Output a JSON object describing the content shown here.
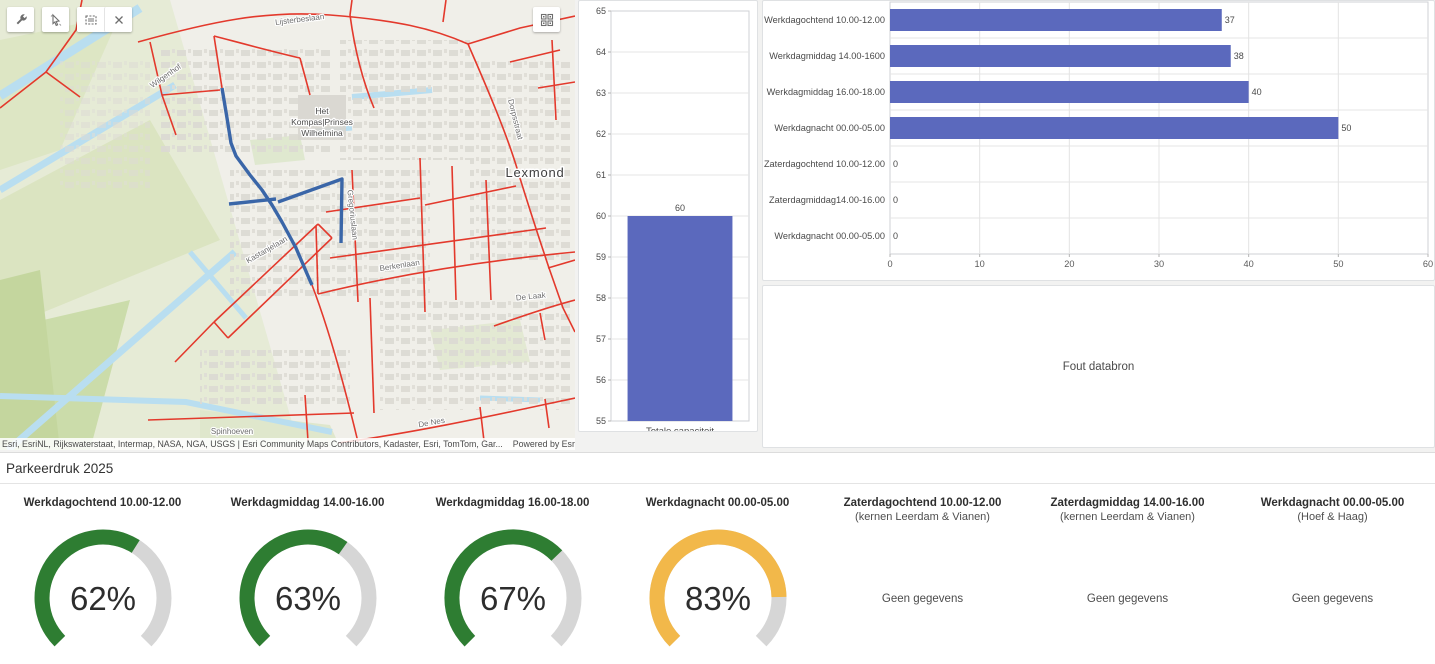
{
  "map": {
    "icons": {
      "sketch_tool": "wrench-icon",
      "select_tool": "pointer-icon",
      "extent_tool": "rectangle-icon",
      "clear_tool": "close-icon",
      "grid_toggle": "grid-icon"
    },
    "labels": {
      "facility_line1": "Het",
      "facility_line2": "Kompas|Prinses",
      "facility_line3": "Wilhelmina",
      "town": "Lexmond",
      "streets": {
        "lijsterbeslaan": "Lijsterbeslaan",
        "dorpsstraat": "Dorpsstraat",
        "wilgenhof": "Wilgenhof",
        "kastanjelaan": "Kastanjelaan",
        "gregoriuslaan": "Gregoriuslaan",
        "berkenlaan": "Berkenlaan",
        "de_laak": "De Laak",
        "spinhoeven": "Spinhoeven",
        "de_nes": "De Nes"
      }
    },
    "attribution": {
      "left": "Esri, EsriNL, Rijkswaterstaat, Intermap, NASA, NGA, USGS",
      "middle": "Esri Community Maps Contributors, Kadaster, Esri, TomTom, Gar...",
      "powered": "Powered by Esri"
    }
  },
  "error_panel": {
    "message": "Fout databron"
  },
  "section": {
    "title": "Parkeerdruk 2025"
  },
  "colors": {
    "bar": "#5b69bd",
    "gauge_green": "#2e7d32",
    "gauge_amber": "#f2b84a",
    "gauge_track": "#d6d6d6",
    "map_road": "#e3392c",
    "map_selection": "#3a66a8"
  },
  "chart_data": [
    {
      "id": "totale-capaciteit",
      "type": "bar",
      "orientation": "vertical",
      "categories": [
        "Totale capaciteit"
      ],
      "values": [
        60
      ],
      "ylim": [
        55,
        65
      ],
      "yticks": [
        55,
        56,
        57,
        58,
        59,
        60,
        61,
        62,
        63,
        64,
        65
      ],
      "value_labels": true,
      "grid": true,
      "legend": "none"
    },
    {
      "id": "bezetting-per-dagdeel",
      "type": "bar",
      "orientation": "horizontal",
      "categories": [
        "Werkdagochtend 10.00-12.00",
        "Werkdagmiddag 14.00-1600",
        "Werkdagmiddag 16.00-18.00",
        "Werkdagnacht 00.00-05.00",
        "Zaterdagochtend 10.00-12.00",
        "Zaterdagmiddag14.00-16.00",
        "Werkdagnacht 00.00-05.00"
      ],
      "values": [
        37,
        38,
        40,
        50,
        0,
        0,
        0
      ],
      "xlim": [
        0,
        60
      ],
      "xticks": [
        0,
        10,
        20,
        30,
        40,
        50,
        60
      ],
      "value_labels": true,
      "grid": true,
      "legend": "none"
    },
    {
      "id": "parkeerdruk-gauges",
      "type": "gauge",
      "items": [
        {
          "title": "Werkdagochtend 10.00-12.00",
          "subtitle": "",
          "percent": 62,
          "display": "62%",
          "color": "#2e7d32"
        },
        {
          "title": "Werkdagmiddag 14.00-16.00",
          "subtitle": "",
          "percent": 63,
          "display": "63%",
          "color": "#2e7d32"
        },
        {
          "title": "Werkdagmiddag 16.00-18.00",
          "subtitle": "",
          "percent": 67,
          "display": "67%",
          "color": "#2e7d32"
        },
        {
          "title": "Werkdagnacht 00.00-05.00",
          "subtitle": "",
          "percent": 83,
          "display": "83%",
          "color": "#f2b84a"
        },
        {
          "title": "Zaterdagochtend 10.00-12.00",
          "subtitle": "(kernen Leerdam & Vianen)",
          "percent": null,
          "no_data": "Geen gegevens"
        },
        {
          "title": "Zaterdagmiddag 14.00-16.00",
          "subtitle": "(kernen Leerdam & Vianen)",
          "percent": null,
          "no_data": "Geen gegevens"
        },
        {
          "title": "Werkdagnacht 00.00-05.00",
          "subtitle": "(Hoef & Haag)",
          "percent": null,
          "no_data": "Geen gegevens"
        }
      ]
    }
  ]
}
